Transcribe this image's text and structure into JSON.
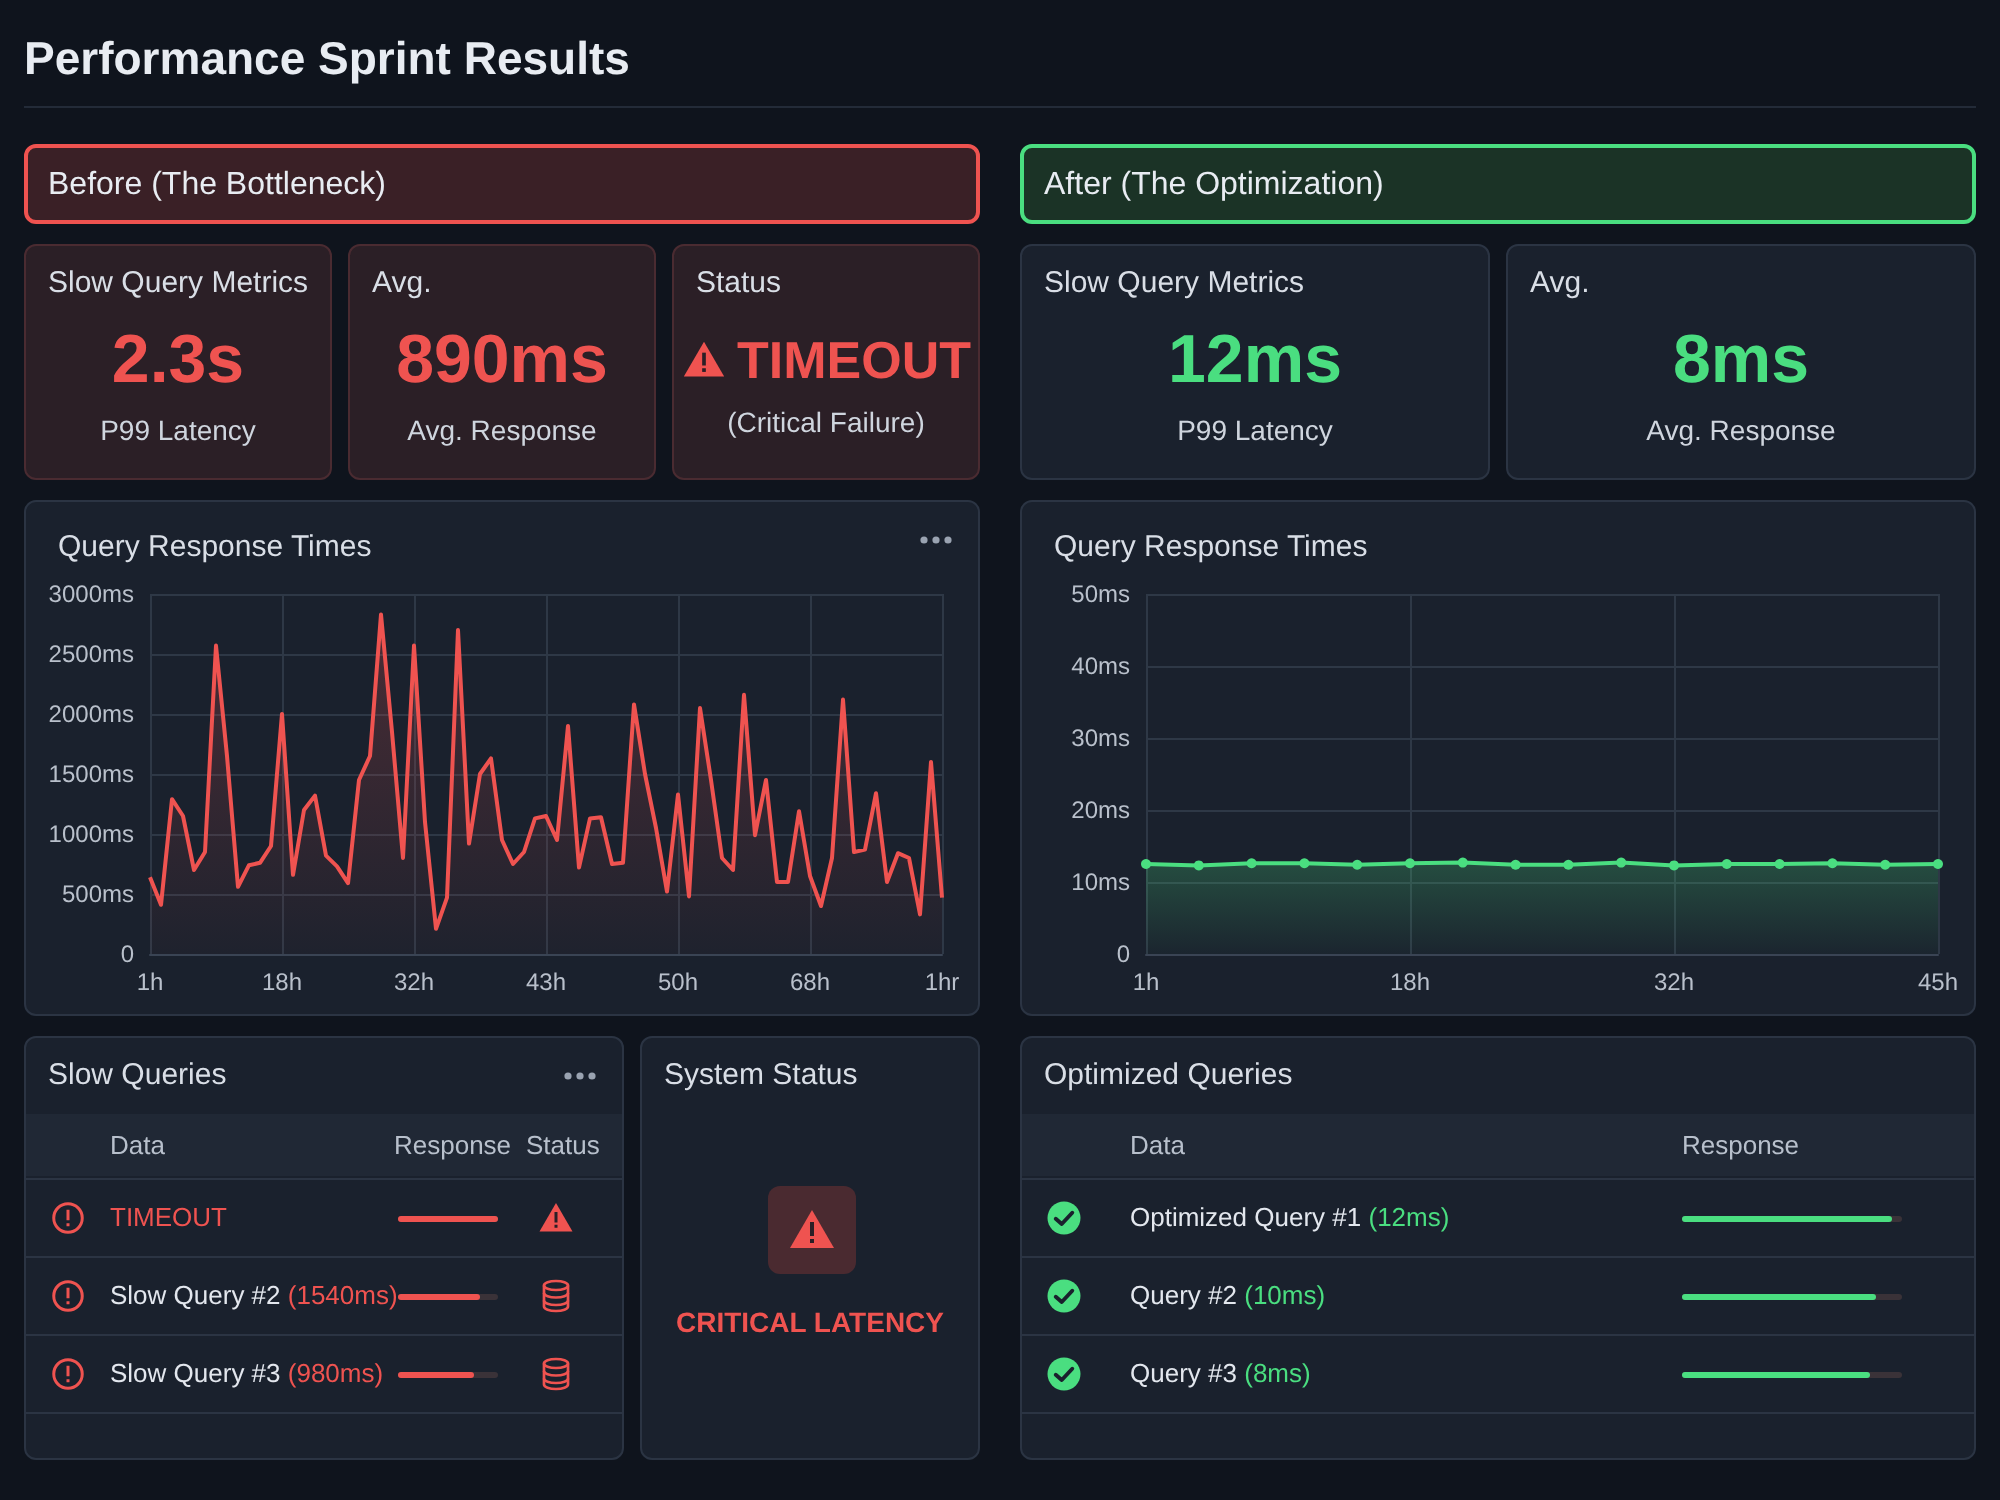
{
  "chart_data": [
    {
      "type": "other",
      "title": "Performance Sprint Results"
    },
    {
      "type": "other",
      "title": "Before (The Bottleneck)"
    },
    {
      "type": "other",
      "title": "Slow Query Metrics",
      "annotations": [
        "2.3s",
        "P99 Latency"
      ]
    },
    {
      "type": "other",
      "title": "Avg.",
      "annotations": [
        "890ms",
        "Avg. Response"
      ]
    },
    {
      "type": "other",
      "title": "Status",
      "annotations": [
        "TIMEOUT",
        "(Critical Failure)"
      ]
    },
    {
      "type": "area",
      "title": "Query Response Times",
      "marker": "none",
      "grid": true,
      "categories": [
        "1h",
        null,
        null,
        null,
        null,
        null,
        null,
        null,
        null,
        null,
        null,
        null,
        "18h",
        null,
        null,
        null,
        null,
        null,
        null,
        null,
        null,
        null,
        null,
        null,
        "32h",
        null,
        null,
        null,
        null,
        null,
        null,
        null,
        null,
        null,
        null,
        null,
        "43h",
        null,
        null,
        null,
        null,
        null,
        null,
        null,
        null,
        null,
        null,
        null,
        "50h",
        null,
        null,
        null,
        null,
        null,
        null,
        null,
        null,
        null,
        null,
        null,
        "68h",
        null,
        null,
        null,
        null,
        null,
        null,
        null,
        null,
        null,
        null,
        null,
        "1hr"
      ],
      "series": [
        {
          "color": "#ef5350",
          "values": [
            640,
            410,
            1290,
            1150,
            700,
            850,
            2570,
            1650,
            560,
            740,
            760,
            900,
            2000,
            660,
            1200,
            1320,
            820,
            730,
            590,
            1450,
            1650,
            2830,
            1850,
            800,
            2570,
            1100,
            210,
            470,
            2700,
            920,
            1500,
            1630,
            950,
            750,
            850,
            1130,
            1150,
            950,
            1900,
            720,
            1130,
            1140,
            750,
            760,
            2080,
            1500,
            1050,
            520,
            1330,
            480,
            2050,
            1450,
            800,
            700,
            2160,
            990,
            1450,
            600,
            600,
            1190,
            650,
            400,
            800,
            2120,
            850,
            870,
            1340,
            600,
            840,
            800,
            330,
            1600,
            470
          ]
        }
      ],
      "ylim": [
        0,
        3000
      ],
      "yticks": [
        0,
        {
          "value": 500,
          "label": "500ms"
        },
        {
          "value": 1000,
          "label": "1000ms"
        },
        {
          "value": 1500,
          "label": "1500ms"
        },
        {
          "value": 2000,
          "label": "2000ms"
        },
        {
          "value": 2500,
          "label": "2500ms"
        },
        {
          "value": 3000,
          "label": "3000ms"
        }
      ]
    },
    {
      "type": "other",
      "title": "Slow Queries",
      "annotations": [
        "Data",
        "Response",
        "Status",
        "TIMEOUT",
        "Slow Query #2",
        "(1540ms)",
        "Slow Query #3",
        "(980ms)"
      ]
    },
    {
      "type": "other",
      "title": "System Status",
      "annotations": [
        "CRITICAL LATENCY"
      ]
    },
    {
      "type": "other",
      "title": "After (The Optimization)"
    },
    {
      "type": "other",
      "title": "Slow Query Metrics",
      "annotations": [
        "12ms",
        "P99 Latency"
      ]
    },
    {
      "type": "other",
      "title": "Avg.",
      "annotations": [
        "8ms",
        "Avg. Response"
      ]
    },
    {
      "type": "area",
      "title": "Query Response Times",
      "marker": "circle",
      "grid": true,
      "categories": [
        "1h",
        null,
        null,
        null,
        null,
        "18h",
        null,
        null,
        null,
        null,
        "32h",
        null,
        null,
        null,
        null,
        "45h"
      ],
      "series": [
        {
          "color": "#4ade80",
          "values": [
            12.5,
            12.3,
            12.6,
            12.6,
            12.4,
            12.6,
            12.7,
            12.4,
            12.4,
            12.7,
            12.3,
            12.5,
            12.5,
            12.6,
            12.4,
            12.5
          ]
        }
      ],
      "ylim": [
        0,
        50
      ],
      "yticks": [
        0,
        {
          "value": 10,
          "label": "10ms"
        },
        {
          "value": 20,
          "label": "20ms"
        },
        {
          "value": 30,
          "label": "30ms"
        },
        {
          "value": 40,
          "label": "40ms"
        },
        {
          "value": 50,
          "label": "50ms"
        }
      ]
    },
    {
      "type": "other",
      "title": "Optimized Queries",
      "annotations": [
        "Data",
        "Response",
        "Optimized Query #1",
        "(12ms)",
        "Query #2",
        "(10ms)",
        "Query #3",
        "(8ms)"
      ]
    }
  ]
}
